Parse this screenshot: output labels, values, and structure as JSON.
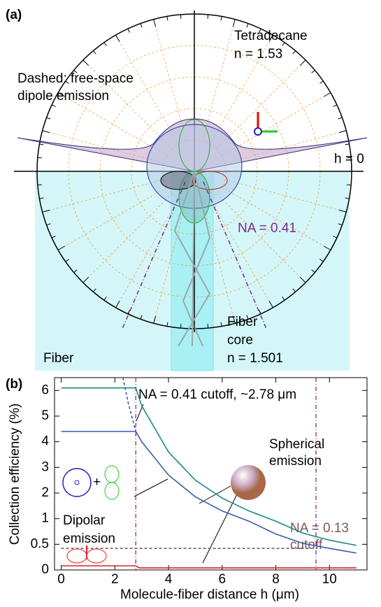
{
  "panel_a": {
    "label": "(a)",
    "medium": "Tetradecane",
    "medium_index": "n = 1.53",
    "note": "Dashed: free-space",
    "note2": "dipole emission",
    "h_label": "h = 0",
    "na_label": "NA = 0.41",
    "core": "Fiber",
    "core2": "core",
    "core_index": "n = 1.501",
    "fiber": "Fiber"
  },
  "chart_data": {
    "type": "line",
    "panel_label": "(b)",
    "xlabel": "Molecule-fiber distance  h (μm)",
    "ylabel": "Collection efficiency (%)",
    "xlim": [
      -0.25,
      11.4
    ],
    "xticks": [
      0,
      2,
      4,
      6,
      8,
      10
    ],
    "ylim": [
      0,
      6.5
    ],
    "yticks": [
      0,
      0.5,
      1,
      2,
      3,
      4,
      5,
      6
    ],
    "yscale": "nonlinear",
    "series": [
      {
        "color": "#1a8a84",
        "dash": false,
        "x": [
          0,
          2.78,
          3,
          4,
          5,
          6,
          7,
          8,
          9,
          10,
          11
        ],
        "values": [
          6.1,
          6.1,
          5.4,
          3.6,
          2.5,
          1.8,
          1.3,
          0.95,
          0.72,
          0.58,
          0.48
        ]
      },
      {
        "color": "#3a5aa8",
        "dash": false,
        "x": [
          0,
          2.78,
          3,
          4,
          5,
          6,
          7,
          8,
          9,
          10,
          11
        ],
        "values": [
          4.4,
          4.4,
          4.0,
          2.7,
          1.85,
          1.3,
          0.95,
          0.7,
          0.52,
          0.42,
          0.33
        ]
      },
      {
        "color": "#3a5aa8",
        "dash": true,
        "x": [
          2.3,
          2.5,
          2.78
        ],
        "values": [
          6.5,
          5.5,
          4.4
        ]
      },
      {
        "color": "#e02020",
        "dash": false,
        "x": [
          0,
          2.78,
          2.9,
          11
        ],
        "values": [
          0.08,
          0.08,
          0.04,
          0.04
        ]
      },
      {
        "color": "#7a5a5a",
        "dash": true,
        "x": [
          0,
          9.5
        ],
        "values": [
          0.42,
          0.42
        ]
      }
    ],
    "cutoffs": [
      2.78,
      9.5
    ],
    "cutoff_color": "#8a2a8a",
    "annotations": [
      "NA = 0.41 cutoff, ~2.78 μm",
      "Spherical",
      "emission",
      "Dipolar",
      "emission",
      "NA = 0.13",
      "cutoff"
    ]
  }
}
